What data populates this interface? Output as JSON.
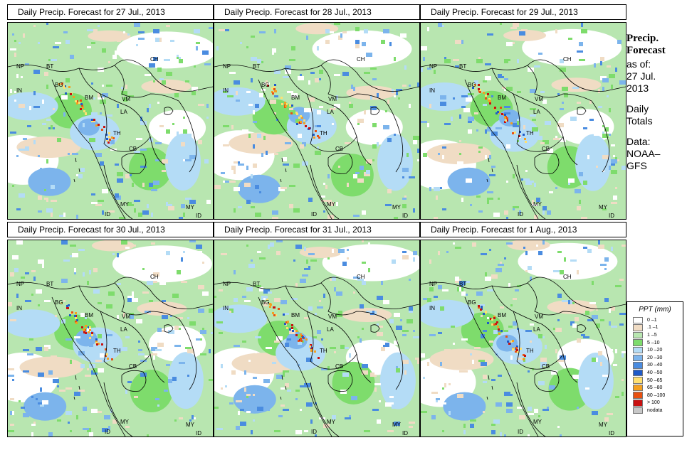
{
  "panels": [
    {
      "title": "Daily Precip. Forecast for  27 Jul., 2013"
    },
    {
      "title": "Daily Precip. Forecast for  28 Jul., 2013"
    },
    {
      "title": "Daily Precip. Forecast for  29 Jul., 2013"
    },
    {
      "title": "Daily Precip. Forecast for  30 Jul., 2013"
    },
    {
      "title": "Daily Precip. Forecast for  31 Jul., 2013"
    },
    {
      "title": "Daily Precip. Forecast for  1 Aug., 2013"
    }
  ],
  "country_labels": [
    "NP",
    "BT",
    "CH",
    "IN",
    "BG",
    "BM",
    "VM",
    "LA",
    "TH",
    "CB",
    "MY",
    "MY",
    "ID",
    "ID"
  ],
  "sidebar": {
    "line1": "Precip.",
    "line2": "Forecast",
    "line3": "as of:",
    "line4": "27 Jul.",
    "line5": "2013",
    "line6": "Daily",
    "line7": "Totals",
    "line8": "Data:",
    "line9": "NOAA–",
    "line10": "GFS"
  },
  "legend": {
    "title": "PPT (mm)",
    "entries": [
      {
        "label": "0 –1",
        "color": "#ffffff"
      },
      {
        "label": ".1 –1",
        "color": "#f0dcc4"
      },
      {
        "label": "1 –5",
        "color": "#b8e6b0"
      },
      {
        "label": "5 –10",
        "color": "#7edc6c"
      },
      {
        "label": "10 –20",
        "color": "#b4dcf6"
      },
      {
        "label": "20 –30",
        "color": "#7cb4ec"
      },
      {
        "label": "30 –40",
        "color": "#4a8ce0"
      },
      {
        "label": "40 –50",
        "color": "#1e5ac8"
      },
      {
        "label": "50 –65",
        "color": "#ffe070"
      },
      {
        "label": "65 –80",
        "color": "#f4a020"
      },
      {
        "label": "80 –100",
        "color": "#e85010"
      },
      {
        "label": "> 100",
        "color": "#c81010"
      },
      {
        "label": "nodata",
        "color": "#c8c8c8"
      }
    ]
  }
}
